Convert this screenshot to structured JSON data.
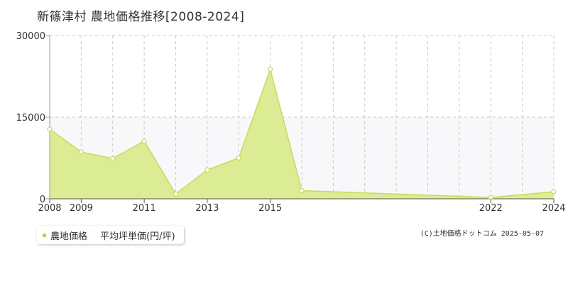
{
  "header": {
    "title": "新篠津村 農地価格推移[2008-2024]"
  },
  "legend": {
    "series_label": "農地価格",
    "unit_label": "平均坪単価(円/坪)"
  },
  "footer": {
    "copyright": "(C)土地価格ドットコム 2025-05-07"
  },
  "colors": {
    "fill": "#dcec94",
    "line": "#c4dc5c",
    "marker": "#ffffff",
    "grid": "#c8c8c8",
    "band": "#f8f7f9"
  },
  "chart_data": {
    "type": "area",
    "title": "新篠津村 農地価格推移[2008-2024]",
    "x": [
      2008,
      2009,
      2010,
      2011,
      2012,
      2013,
      2014,
      2015,
      2016,
      2017,
      2018,
      2019,
      2020,
      2021,
      2022,
      2023,
      2024
    ],
    "series": [
      {
        "name": "農地価格",
        "points": [
          {
            "x": 2008,
            "y": 12800
          },
          {
            "x": 2009,
            "y": 8600
          },
          {
            "x": 2010,
            "y": 7400
          },
          {
            "x": 2011,
            "y": 10600
          },
          {
            "x": 2012,
            "y": 900
          },
          {
            "x": 2013,
            "y": 5300
          },
          {
            "x": 2014,
            "y": 7500
          },
          {
            "x": 2015,
            "y": 23800
          },
          {
            "x": 2016,
            "y": 1500
          },
          {
            "x": 2022,
            "y": 250
          },
          {
            "x": 2024,
            "y": 1300
          }
        ]
      }
    ],
    "xticks": [
      2008,
      2009,
      2011,
      2013,
      2015,
      2022,
      2024
    ],
    "yticks": [
      0,
      15000,
      30000
    ],
    "xlim": [
      2008,
      2024
    ],
    "ylim": [
      0,
      30000
    ],
    "grid": true
  }
}
